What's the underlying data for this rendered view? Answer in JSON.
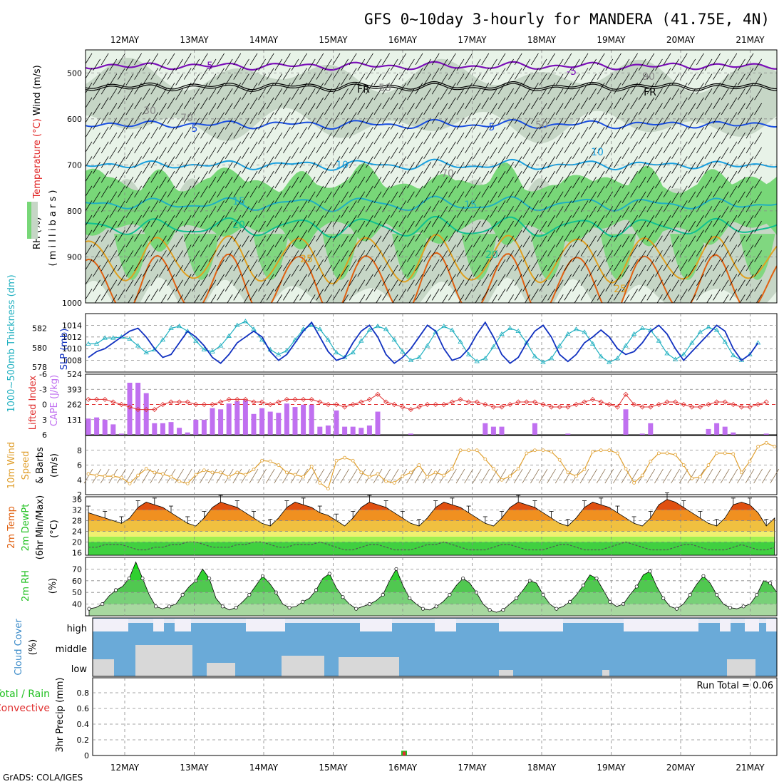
{
  "title": "GFS 0~10day 3-hourly for MANDERA (41.75E, 4N)",
  "credit": "GrADS: COLA/IGES",
  "dates": [
    "12MAY",
    "13MAY",
    "14MAY",
    "15MAY",
    "16MAY",
    "17MAY",
    "18MAY",
    "19MAY",
    "20MAY",
    "21MAY"
  ],
  "colors": {
    "rh_light": "#e8f3e8",
    "rh_mid": "#c6d6c6",
    "rh_green": "#78d778",
    "rh_bright": "#00f000",
    "temp_purple": "#7b10b8",
    "temp_blue": "#1a4fe0",
    "temp_lightblue": "#1aa0e0",
    "temp_teal": "#10c090",
    "temp_orange": "#e0a020",
    "temp_dorange": "#e06010",
    "slp": "#1030c0",
    "thickness": "#20b0c0",
    "cape": "#c070f0",
    "lifted": "#e03030",
    "wind10": "#e0a030",
    "rh2m": "#20c020",
    "cloud": "#6aaad8",
    "cloud_bg": "#f2f0f8",
    "cloud_low": "#d8d8d8"
  },
  "panels": {
    "upper": {
      "ylabel_parts": [
        "RH (%)",
        "Temperature (°C)",
        "Wind (m/s)"
      ],
      "yunit": "( m i l l i b a r s )",
      "yticks": [
        "500",
        "600",
        "700",
        "800",
        "900",
        "1000"
      ],
      "contour_labels": [
        "-5",
        "FR",
        "-5",
        "FR",
        "5",
        "5",
        "10",
        "10",
        "15",
        "15",
        "20",
        "20",
        "25",
        "25",
        "30",
        "70",
        "50",
        "70",
        "50",
        "90"
      ]
    },
    "slp": {
      "ylabel_left": "1000~500mb Thickness (dm)",
      "ylabel_right": "SLP (mb)",
      "left_ticks": [
        "582",
        "580",
        "578"
      ],
      "right_ticks": [
        "1014",
        "1012",
        "1010",
        "1008"
      ]
    },
    "cape": {
      "ylabel_left": "Lifted Index",
      "ylabel_right": "CAPE (J/kg)",
      "left_ticks": [
        "-6",
        "-3",
        "0",
        "3",
        "6"
      ],
      "right_ticks": [
        "524",
        "393",
        "262",
        "131"
      ]
    },
    "wind": {
      "ylabel": [
        "10m Wind",
        "Speed",
        "& Barbs"
      ],
      "yunit": "(m/s)",
      "yticks": [
        "8",
        "6",
        "4",
        "2"
      ]
    },
    "temp": {
      "ylabel": [
        "2m Temp",
        "2m DewPt",
        "(6hr Min/Max)"
      ],
      "yunit": "(°C)",
      "yticks": [
        "36",
        "32",
        "28",
        "24",
        "20",
        "16"
      ]
    },
    "rh": {
      "ylabel": "2m RH",
      "yunit": "(%)",
      "yticks": [
        "70",
        "60",
        "50",
        "40"
      ]
    },
    "cloud": {
      "ylabel": "Cloud Cover",
      "yunit": "(%)",
      "levels": [
        "high",
        "middle",
        "low"
      ]
    },
    "precip": {
      "ylabel_left": "Total / Rain",
      "ylabel_left2": "Convective",
      "ylabel_right": "3hr Precip (mm)",
      "yticks": [
        "0.8",
        "0.6",
        "0.4",
        "0.2",
        "0"
      ],
      "run_total": "Run Total = 0.06"
    }
  },
  "chart_data": [
    {
      "type": "line",
      "title": "Sea Level Pressure & 1000~500mb Thickness",
      "x_unit": "3-hourly steps (0 = 11 MAY 12Z)",
      "series": [
        {
          "name": "SLP (mb)",
          "values": [
            1008.5,
            1009.5,
            1010,
            1011,
            1012,
            1013,
            1013.5,
            1012,
            1010,
            1008.5,
            1009,
            1011,
            1013,
            1012,
            1010.5,
            1008.5,
            1007.5,
            1009,
            1011,
            1012,
            1013,
            1012,
            1009.5,
            1008,
            1009,
            1011,
            1013,
            1014.5,
            1012,
            1009.5,
            1008,
            1008.5,
            1011,
            1013,
            1014,
            1012,
            1009,
            1007.5,
            1008.5,
            1010,
            1012,
            1014,
            1013,
            1010,
            1008,
            1008.5,
            1010,
            1012.5,
            1014.5,
            1012,
            1009,
            1007.5,
            1008.5,
            1011,
            1013,
            1014,
            1012,
            1009,
            1007.8,
            1009,
            1011,
            1012,
            1013.2,
            1012,
            1010,
            1009,
            1009.5,
            1011,
            1013,
            1014,
            1012.5,
            1010,
            1008,
            1009.5,
            1011,
            1012.5,
            1014,
            1013,
            1010,
            1008,
            1009,
            1011
          ]
        },
        {
          "name": "Thickness (dm)",
          "values": [
            580.4,
            580.4,
            581,
            581,
            581.1,
            580.9,
            580.2,
            579.5,
            579.8,
            580.8,
            582.0,
            582.2,
            581.7,
            580.7,
            579.8,
            579.6,
            580.2,
            581.2,
            582.3,
            582.7,
            581.9,
            580.8,
            579.8,
            579.3,
            579.7,
            580.8,
            581.9,
            582.3,
            581.9,
            580.8,
            579.5,
            579.0,
            579.5,
            580.7,
            581.8,
            582.2,
            581.9,
            580.8,
            579.6,
            578.7,
            579.0,
            580.2,
            581.6,
            582.2,
            581.8,
            580.6,
            579.3,
            578.6,
            578.9,
            580.1,
            581.4,
            582.0,
            581.7,
            580.5,
            579.1,
            578.5,
            578.9,
            580.2,
            581.4,
            581.9,
            581.6,
            580.4,
            579.1,
            578.5,
            578.9,
            580.2,
            581.4,
            582.0,
            581.8,
            580.7,
            579.4,
            578.8,
            579.3,
            580.5,
            581.6,
            582.1,
            581.8,
            580.6,
            579.2,
            578.7,
            579.3,
            580.5
          ]
        }
      ],
      "ylim_left": [
        577.5,
        583.5
      ],
      "ylim_right": [
        1006,
        1016
      ]
    },
    {
      "type": "bar",
      "title": "CAPE & Lifted Index",
      "series": [
        {
          "name": "CAPE (J/kg)",
          "values": [
            140,
            150,
            130,
            90,
            10,
            450,
            450,
            360,
            100,
            100,
            110,
            60,
            20,
            130,
            130,
            230,
            220,
            270,
            290,
            300,
            180,
            230,
            200,
            190,
            270,
            240,
            260,
            260,
            70,
            80,
            210,
            70,
            70,
            60,
            80,
            200,
            0,
            0,
            0,
            10,
            0,
            0,
            0,
            0,
            0,
            0,
            0,
            0,
            100,
            70,
            70,
            0,
            0,
            0,
            100,
            0,
            0,
            0,
            10,
            0,
            0,
            0,
            0,
            0,
            0,
            220,
            0,
            10,
            100,
            0,
            0,
            0,
            0,
            0,
            0,
            50,
            100,
            70,
            20,
            0,
            0,
            0,
            10
          ]
        },
        {
          "name": "Lifted Index",
          "values": [
            -1,
            -1,
            -1,
            -0.5,
            0,
            0.5,
            1,
            1,
            1,
            0,
            -0.5,
            -0.5,
            -0.5,
            0,
            0,
            0,
            -0.5,
            -1,
            -1,
            -1,
            -0.5,
            -0.5,
            0,
            -0.5,
            -1,
            -1,
            -1,
            -1,
            -0.5,
            0,
            0,
            0.5,
            0,
            -0.5,
            -1,
            -2,
            -0.5,
            0,
            0.5,
            1,
            0.5,
            0,
            0,
            0,
            -0.5,
            -1,
            -0.5,
            -0.5,
            0,
            0.5,
            0.5,
            0,
            -0.5,
            -0.5,
            -0.5,
            0,
            0.5,
            0.5,
            0.5,
            0,
            -0.5,
            -1,
            -0.5,
            0,
            0.5,
            -2,
            0,
            0.5,
            0.5,
            0,
            -0.5,
            -0.5,
            0,
            0.5,
            0.5,
            0,
            -0.5,
            -0.5,
            0,
            0.5,
            0.5,
            0,
            -0.5
          ]
        }
      ],
      "ylim_right": [
        0,
        524
      ],
      "ylim_left": [
        6,
        -6
      ]
    },
    {
      "type": "line",
      "title": "10m Wind Speed",
      "series": [
        {
          "name": "Wind speed (m/s)",
          "values": [
            4.8,
            4.6,
            4.5,
            4.5,
            4.3,
            3.5,
            4.6,
            5.5,
            5.0,
            4.8,
            4.4,
            3.8,
            3.5,
            4.7,
            5.3,
            5.0,
            5.0,
            4.4,
            5.0,
            4.7,
            5.4,
            6.6,
            6.5,
            6.0,
            5.0,
            4.7,
            4.4,
            5.8,
            3.6,
            2.8,
            6.6,
            7.0,
            6.6,
            5.0,
            4.4,
            4.8,
            3.8,
            3.6,
            4.5,
            5.0,
            6.0,
            4.4,
            5.0,
            4.6,
            5.5,
            8.0,
            8.0,
            8.0,
            6.8,
            5.5,
            4.0,
            4.5,
            5.5,
            7.6,
            8.0,
            8.0,
            7.8,
            6.7,
            5.0,
            4.5,
            5.4,
            7.8,
            8.0,
            8.0,
            7.6,
            5.5,
            3.6,
            4.6,
            6.5,
            7.6,
            7.6,
            7.4,
            6.0,
            4.2,
            4.4,
            6.0,
            7.6,
            7.6,
            7.5,
            5.0,
            6.5,
            8.5,
            9.0,
            8.5
          ]
        }
      ],
      "ylim": [
        2,
        10
      ]
    },
    {
      "type": "area",
      "title": "2m Temperature & Dewpoint",
      "series": [
        {
          "name": "2m Temp (°C)",
          "values": [
            31,
            30,
            29,
            28,
            27,
            29,
            33,
            35,
            34,
            33,
            31,
            29,
            27,
            26,
            29,
            33,
            35,
            34,
            33,
            31,
            29,
            27,
            26,
            29,
            33,
            35,
            34,
            33,
            31,
            30,
            28,
            26,
            29,
            33,
            35,
            34,
            33,
            31,
            29,
            27,
            26,
            29,
            33,
            35,
            34,
            33,
            31,
            29,
            27,
            26,
            29,
            33,
            35,
            34,
            33,
            31,
            29,
            27,
            26,
            29,
            33,
            35,
            34,
            33,
            31,
            29,
            27,
            26,
            29,
            34,
            36,
            35,
            33,
            31,
            29,
            27,
            26,
            29,
            34,
            35,
            34,
            31,
            26,
            29
          ]
        },
        {
          "name": "2m DewPt (°C)",
          "values": [
            18,
            18,
            19,
            19,
            19,
            18,
            17,
            17,
            18,
            18,
            19,
            19,
            20,
            20,
            19,
            18,
            18,
            18,
            19,
            19,
            20,
            20,
            19,
            18,
            18,
            19,
            19,
            19,
            20,
            19,
            18,
            17,
            17,
            18,
            19,
            19,
            18,
            17,
            17,
            17,
            18,
            19,
            19,
            20,
            19,
            18,
            17,
            17,
            17,
            18,
            19,
            19,
            18,
            17,
            17,
            17,
            18,
            19,
            19,
            18,
            17,
            17,
            17,
            18,
            19,
            20,
            19,
            18,
            17,
            17,
            17,
            18,
            19,
            19,
            18,
            17,
            17,
            17,
            18,
            19,
            18,
            17,
            17,
            18
          ]
        }
      ],
      "ylim": [
        15,
        37
      ]
    },
    {
      "type": "area",
      "title": "2m RH",
      "series": [
        {
          "name": "2m RH (%)",
          "values": [
            36,
            37,
            40,
            47,
            52,
            55,
            62,
            76,
            62,
            48,
            38,
            36,
            38,
            40,
            48,
            55,
            60,
            70,
            62,
            45,
            38,
            35,
            37,
            42,
            48,
            56,
            64,
            58,
            50,
            40,
            37,
            38,
            42,
            45,
            52,
            62,
            66,
            54,
            46,
            40,
            36,
            38,
            40,
            43,
            48,
            60,
            70,
            56,
            45,
            40,
            36,
            35,
            38,
            42,
            48,
            56,
            62,
            58,
            50,
            40,
            35,
            33,
            35,
            40,
            45,
            52,
            60,
            58,
            48,
            40,
            36,
            38,
            42,
            48,
            56,
            65,
            62,
            52,
            42,
            38,
            40,
            48,
            55,
            65,
            68,
            55,
            45,
            38,
            36,
            40,
            48,
            57,
            64,
            58,
            48,
            40,
            37,
            36,
            38,
            40,
            48,
            60,
            58,
            50
          ]
        }
      ],
      "ylim": [
        30,
        80
      ]
    },
    {
      "type": "area",
      "title": "3hr Precip",
      "series": [
        {
          "name": "Total / Rain (mm)",
          "values": [
            0,
            0,
            0,
            0,
            0,
            0,
            0,
            0,
            0,
            0,
            0,
            0,
            0,
            0,
            0,
            0,
            0,
            0,
            0,
            0,
            0,
            0,
            0,
            0,
            0,
            0,
            0,
            0,
            0,
            0,
            0,
            0,
            0,
            0,
            0,
            0,
            0,
            0,
            0,
            0,
            0.06,
            0,
            0,
            0,
            0,
            0,
            0,
            0,
            0,
            0,
            0,
            0,
            0,
            0,
            0,
            0,
            0,
            0,
            0,
            0,
            0,
            0,
            0,
            0,
            0,
            0,
            0,
            0,
            0,
            0,
            0,
            0,
            0,
            0,
            0,
            0,
            0,
            0,
            0,
            0,
            0,
            0
          ]
        },
        {
          "name": "Convective (mm)",
          "values": [
            0,
            0,
            0,
            0,
            0,
            0,
            0,
            0,
            0,
            0,
            0,
            0,
            0,
            0,
            0,
            0,
            0,
            0,
            0,
            0,
            0,
            0,
            0,
            0,
            0,
            0,
            0,
            0,
            0,
            0,
            0,
            0,
            0,
            0,
            0,
            0,
            0,
            0,
            0,
            0,
            0.05,
            0,
            0,
            0,
            0,
            0,
            0,
            0,
            0,
            0,
            0,
            0,
            0,
            0,
            0,
            0,
            0,
            0,
            0,
            0,
            0,
            0,
            0,
            0,
            0,
            0,
            0,
            0,
            0,
            0,
            0,
            0,
            0,
            0,
            0,
            0,
            0,
            0,
            0,
            0,
            0,
            0
          ]
        }
      ],
      "ylim": [
        0,
        1
      ]
    }
  ]
}
